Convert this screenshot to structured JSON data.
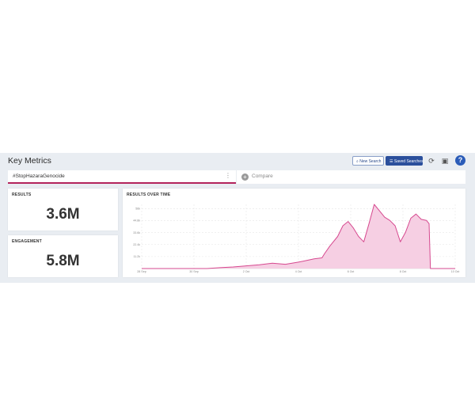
{
  "header": {
    "title": "Key Metrics",
    "new_search_label": "New Search",
    "saved_searches_label": "Saved Searches",
    "refresh_icon": "refresh-icon",
    "save_icon": "save-icon",
    "help_label": "?"
  },
  "tabs": {
    "search_query": "#StopHazaraGenocide",
    "compare_label": "Compare"
  },
  "results_card": {
    "label": "RESULTS",
    "value": "3.6M"
  },
  "engagement_card": {
    "label": "ENGAGEMENT",
    "value": "5.8M"
  },
  "chart_data": {
    "type": "area",
    "title": "RESULTS OVER TIME",
    "color": "#d6498f",
    "fill": "#f6cfe3",
    "y_ticks": [
      "11.2k",
      "22.4k",
      "33.6k",
      "44.8k",
      "56k"
    ],
    "y_values": [
      11200,
      22400,
      33600,
      44800,
      56000
    ],
    "ylim": [
      0,
      60000
    ],
    "x_ticks": [
      "28 Sep",
      "30 Sep",
      "2 Oct",
      "4 Oct",
      "6 Oct",
      "8 Oct",
      "10 Oct"
    ],
    "x_range": [
      0,
      12
    ],
    "series_x": [
      0,
      0.5,
      1,
      1.5,
      2,
      2.5,
      3,
      3.5,
      4,
      4.5,
      5,
      5.5,
      6,
      6.3,
      6.6,
      6.9,
      7,
      7.2,
      7.5,
      7.7,
      7.9,
      8.1,
      8.3,
      8.5,
      8.7,
      8.9,
      9.1,
      9.3,
      9.5,
      9.7,
      9.9,
      10.1,
      10.3,
      10.5,
      10.7,
      10.9,
      11,
      11.05,
      11.5,
      12
    ],
    "series_y": [
      0,
      0,
      0,
      0,
      0,
      0,
      800,
      1500,
      2500,
      3500,
      5000,
      4000,
      6000,
      7500,
      9000,
      10000,
      14000,
      21000,
      30000,
      40000,
      44000,
      38000,
      30000,
      25000,
      42000,
      60000,
      54000,
      48000,
      45000,
      40000,
      25000,
      34000,
      47000,
      51000,
      46000,
      45000,
      42000,
      0,
      0,
      0
    ]
  }
}
